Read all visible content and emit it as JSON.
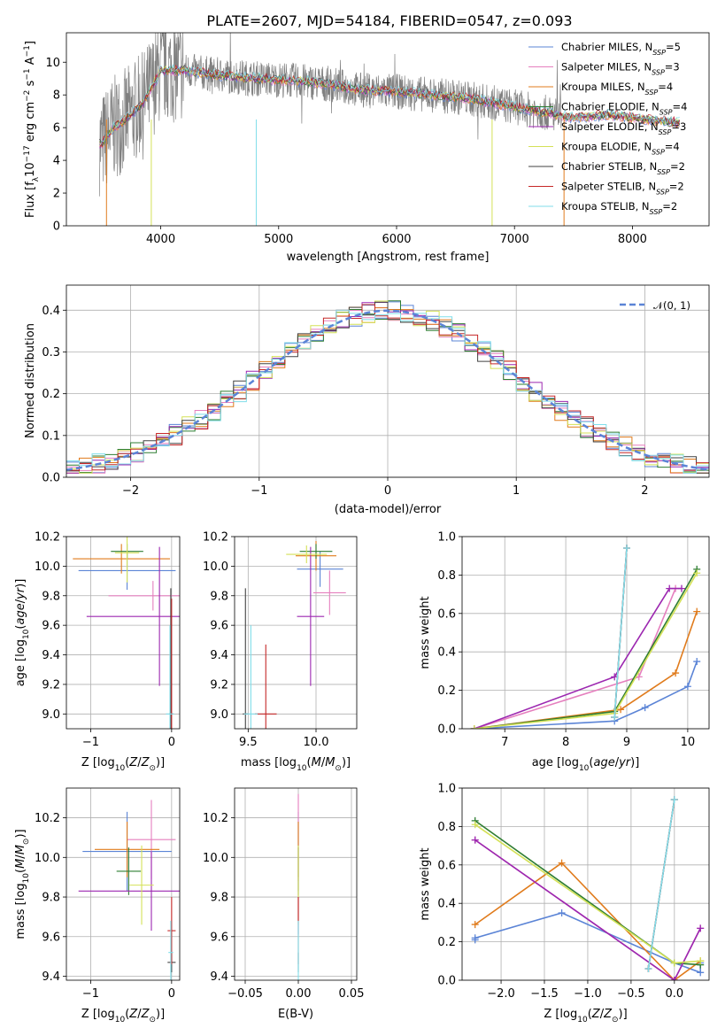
{
  "title": "PLATE=2607, MJD=54184, FIBERID=0547, z=0.093",
  "chart_data": [
    {
      "id": "spectrum",
      "type": "line",
      "xlabel": "wavelength [Angstrom, rest frame]",
      "ylabel": "Flux [f_λ10^-17 erg cm^-2 s^-1 A^-1]",
      "xlim": [
        3200,
        8650
      ],
      "ylim": [
        0,
        11.8
      ],
      "xticks": [
        4000,
        5000,
        6000,
        7000,
        8000
      ],
      "yticks": [
        0,
        2,
        4,
        6,
        8,
        10
      ],
      "grid": false,
      "legend_position": "top-right",
      "legend": [
        {
          "base": "Chabrier MILES, N",
          "sub": "SSP",
          "tail": "=5",
          "color": "#5b84d6"
        },
        {
          "base": "Salpeter MILES, N",
          "sub": "SSP",
          "tail": "=3",
          "color": "#e57fbe"
        },
        {
          "base": "Kroupa MILES, N",
          "sub": "SSP",
          "tail": "=4",
          "color": "#e07b1c"
        },
        {
          "base": "Chabrier ELODIE, N",
          "sub": "SSP",
          "tail": "=4",
          "color": "#2e7d32"
        },
        {
          "base": "Salpeter ELODIE, N",
          "sub": "SSP",
          "tail": "=3",
          "color": "#9c27b0"
        },
        {
          "base": "Kroupa ELODIE, N",
          "sub": "SSP",
          "tail": "=4",
          "color": "#d4e157"
        },
        {
          "base": "Chabrier STELIB, N",
          "sub": "SSP",
          "tail": "=2",
          "color": "#424242"
        },
        {
          "base": "Salpeter STELIB, N",
          "sub": "SSP",
          "tail": "=2",
          "color": "#c62828"
        },
        {
          "base": "Kroupa STELIB, N",
          "sub": "SSP",
          "tail": "=2",
          "color": "#80deea"
        }
      ],
      "data_envelope": {
        "x": [
          3500,
          3600,
          3700,
          3850,
          4000,
          4200,
          4500,
          4800,
          5100,
          5400,
          5700,
          6000,
          6300,
          6600,
          6900,
          7200,
          7500,
          7800,
          8100,
          8400
        ],
        "y": [
          5.0,
          6.0,
          6.5,
          7.5,
          9.5,
          9.5,
          9.2,
          9.0,
          8.9,
          8.7,
          8.3,
          8.2,
          8.0,
          7.8,
          7.4,
          7.0,
          6.6,
          6.8,
          6.5,
          6.3
        ]
      },
      "noise_band": {
        "x_range": [
          3500,
          7400
        ],
        "amplitude": 2.0
      }
    },
    {
      "id": "residuals",
      "type": "line",
      "xlabel": "(data-model)/error",
      "ylabel": "Normed distribution",
      "xlim": [
        -2.5,
        2.5
      ],
      "ylim": [
        0,
        0.46
      ],
      "xticks": [
        -2,
        -1,
        0,
        1,
        2
      ],
      "yticks": [
        0.0,
        0.1,
        0.2,
        0.3,
        0.4
      ],
      "grid": true,
      "legend_position": "top-right",
      "legend": [
        {
          "label": "𝒩(0, 1)",
          "color": "#5b84d6",
          "dashed": true
        }
      ],
      "curve": "normal_pdf_mean0_sd1"
    },
    {
      "id": "age_vs_Z",
      "type": "scatter",
      "xlabel": "Z [log10(Z/Z☉)]",
      "ylabel": "age  [log10(age/yr)]",
      "xlim": [
        -1.3,
        0.1
      ],
      "ylim": [
        8.9,
        10.2
      ],
      "xticks": [
        -1,
        0
      ],
      "yticks": [
        9.0,
        9.2,
        9.4,
        9.6,
        9.8,
        10.0,
        10.2
      ],
      "grid": true,
      "points": [
        {
          "x": -0.55,
          "y": 9.97,
          "xerr": 0.6,
          "yerr": 0.13,
          "color": "#5b84d6"
        },
        {
          "x": -0.23,
          "y": 9.8,
          "xerr": 0.55,
          "yerr": 0.1,
          "color": "#e57fbe"
        },
        {
          "x": -0.62,
          "y": 10.05,
          "xerr": 0.6,
          "yerr": 0.1,
          "color": "#e07b1c"
        },
        {
          "x": -0.55,
          "y": 10.1,
          "xerr": 0.2,
          "yerr": 0.05,
          "color": "#2e7d32"
        },
        {
          "x": -0.15,
          "y": 9.66,
          "xerr": 0.9,
          "yerr": 0.47,
          "color": "#9c27b0"
        },
        {
          "x": -0.55,
          "y": 10.09,
          "xerr": 0.15,
          "yerr": 0.2,
          "color": "#d4e157"
        },
        {
          "x": -0.01,
          "y": 9.0,
          "xerr": 0.02,
          "yerr": 0.85,
          "color": "#424242"
        },
        {
          "x": 0.0,
          "y": 9.0,
          "xerr": 0.02,
          "yerr": 0.78,
          "color": "#c62828"
        },
        {
          "x": -0.02,
          "y": 9.0,
          "xerr": 0.05,
          "yerr": 0.6,
          "color": "#80deea"
        }
      ]
    },
    {
      "id": "age_vs_mass",
      "type": "scatter",
      "xlabel": "mass [log10(M/M☉)]",
      "ylabel": "",
      "xlim": [
        9.4,
        10.3
      ],
      "ylim": [
        8.9,
        10.2
      ],
      "xticks": [
        9.5,
        10.0
      ],
      "yticks": [
        9.0,
        9.2,
        9.4,
        9.6,
        9.8,
        10.0,
        10.2
      ],
      "grid": true,
      "points": [
        {
          "x": 10.03,
          "y": 9.98,
          "xerr": 0.17,
          "yerr": 0.12,
          "color": "#5b84d6"
        },
        {
          "x": 10.1,
          "y": 9.82,
          "xerr": 0.12,
          "yerr": 0.15,
          "color": "#e57fbe"
        },
        {
          "x": 10.0,
          "y": 10.07,
          "xerr": 0.15,
          "yerr": 0.1,
          "color": "#e07b1c"
        },
        {
          "x": 10.0,
          "y": 10.1,
          "xerr": 0.12,
          "yerr": 0.05,
          "color": "#2e7d32"
        },
        {
          "x": 9.96,
          "y": 9.66,
          "xerr": 0.1,
          "yerr": 0.47,
          "color": "#9c27b0"
        },
        {
          "x": 9.93,
          "y": 10.08,
          "xerr": 0.15,
          "yerr": 0.06,
          "color": "#d4e157"
        },
        {
          "x": 9.48,
          "y": 9.0,
          "xerr": 0.02,
          "yerr": 0.85,
          "color": "#424242"
        },
        {
          "x": 9.63,
          "y": 9.0,
          "xerr": 0.08,
          "yerr": 0.47,
          "color": "#c62828"
        },
        {
          "x": 9.52,
          "y": 9.0,
          "xerr": 0.05,
          "yerr": 0.6,
          "color": "#80deea"
        }
      ]
    },
    {
      "id": "weight_vs_age",
      "type": "line",
      "xlabel": "age  [log10(age/yr)]",
      "ylabel": "mass weight",
      "xlim": [
        6.3,
        10.35
      ],
      "ylim": [
        0,
        1.0
      ],
      "xticks": [
        7,
        8,
        9,
        10
      ],
      "yticks": [
        0.0,
        0.2,
        0.4,
        0.6,
        0.8,
        1.0
      ],
      "grid": true,
      "series": [
        {
          "color": "#5b84d6",
          "x": [
            6.5,
            8.8,
            9.3,
            10.0,
            10.15
          ],
          "y": [
            0.0,
            0.04,
            0.11,
            0.22,
            0.35
          ]
        },
        {
          "color": "#e57fbe",
          "x": [
            6.5,
            9.2,
            9.8
          ],
          "y": [
            0.0,
            0.27,
            0.73
          ]
        },
        {
          "color": "#e07b1c",
          "x": [
            6.5,
            8.9,
            9.8,
            10.15
          ],
          "y": [
            0.0,
            0.1,
            0.29,
            0.61
          ]
        },
        {
          "color": "#2e7d32",
          "x": [
            6.5,
            8.8,
            10.15
          ],
          "y": [
            0.0,
            0.09,
            0.83
          ]
        },
        {
          "color": "#9c27b0",
          "x": [
            6.5,
            8.8,
            9.7,
            9.9
          ],
          "y": [
            0.0,
            0.27,
            0.73,
            0.73
          ]
        },
        {
          "color": "#d4e157",
          "x": [
            6.5,
            8.8,
            10.15
          ],
          "y": [
            0.0,
            0.08,
            0.81
          ]
        },
        {
          "color": "#424242",
          "x": [
            8.8,
            9.0
          ],
          "y": [
            0.06,
            0.94
          ]
        },
        {
          "color": "#c62828",
          "x": [
            8.8,
            9.0
          ],
          "y": [
            0.06,
            0.94
          ]
        },
        {
          "color": "#80deea",
          "x": [
            8.8,
            9.0
          ],
          "y": [
            0.06,
            0.94
          ]
        }
      ]
    },
    {
      "id": "mass_vs_Z",
      "type": "scatter",
      "xlabel": "Z [log10(Z/Z☉)]",
      "ylabel": "mass [log10(M/M☉)]",
      "xlim": [
        -1.3,
        0.1
      ],
      "ylim": [
        9.38,
        10.35
      ],
      "xticks": [
        -1,
        0
      ],
      "yticks": [
        9.4,
        9.6,
        9.8,
        10.0,
        10.2
      ],
      "grid": true,
      "points": [
        {
          "x": -0.55,
          "y": 10.03,
          "xerr": 0.55,
          "yerr": 0.2,
          "color": "#5b84d6"
        },
        {
          "x": -0.25,
          "y": 10.09,
          "xerr": 0.3,
          "yerr": 0.2,
          "color": "#e57fbe"
        },
        {
          "x": -0.55,
          "y": 10.04,
          "xerr": 0.4,
          "yerr": 0.14,
          "color": "#e07b1c"
        },
        {
          "x": -0.53,
          "y": 9.93,
          "xerr": 0.15,
          "yerr": 0.12,
          "color": "#2e7d32"
        },
        {
          "x": -0.25,
          "y": 9.83,
          "xerr": 0.9,
          "yerr": 0.2,
          "color": "#9c27b0"
        },
        {
          "x": -0.37,
          "y": 9.86,
          "xerr": 0.15,
          "yerr": 0.2,
          "color": "#d4e157"
        },
        {
          "x": 0.0,
          "y": 9.47,
          "xerr": 0.05,
          "yerr": 0.05,
          "color": "#424242"
        },
        {
          "x": 0.0,
          "y": 9.63,
          "xerr": 0.05,
          "yerr": 0.17,
          "color": "#c62828"
        },
        {
          "x": -0.01,
          "y": 9.52,
          "xerr": 0.03,
          "yerr": 0.16,
          "color": "#80deea"
        }
      ]
    },
    {
      "id": "mass_vs_ebv",
      "type": "scatter",
      "xlabel": "E(B-V)",
      "ylabel": "",
      "xlim": [
        -0.06,
        0.055
      ],
      "ylim": [
        9.38,
        10.35
      ],
      "xticks": [
        -0.05,
        0.0,
        0.05
      ],
      "yticks": [
        9.4,
        9.6,
        9.8,
        10.0,
        10.2
      ],
      "grid": true,
      "points": [
        {
          "x": 0.0,
          "y": 10.03,
          "xerr": 0.0,
          "yerr": 0.2,
          "color": "#5b84d6"
        },
        {
          "x": 0.0,
          "y": 10.1,
          "xerr": 0.0,
          "yerr": 0.22,
          "color": "#e57fbe"
        },
        {
          "x": 0.0,
          "y": 10.04,
          "xerr": 0.0,
          "yerr": 0.14,
          "color": "#e07b1c"
        },
        {
          "x": 0.0,
          "y": 9.93,
          "xerr": 0.0,
          "yerr": 0.12,
          "color": "#2e7d32"
        },
        {
          "x": 0.0,
          "y": 9.83,
          "xerr": 0.0,
          "yerr": 0.22,
          "color": "#9c27b0"
        },
        {
          "x": 0.0,
          "y": 9.86,
          "xerr": 0.0,
          "yerr": 0.2,
          "color": "#d4e157"
        },
        {
          "x": 0.0,
          "y": 9.47,
          "xerr": 0.0,
          "yerr": 0.05,
          "color": "#424242"
        },
        {
          "x": 0.0,
          "y": 9.63,
          "xerr": 0.0,
          "yerr": 0.17,
          "color": "#c62828"
        },
        {
          "x": 0.0,
          "y": 9.52,
          "xerr": 0.0,
          "yerr": 0.16,
          "color": "#80deea"
        }
      ]
    },
    {
      "id": "weight_vs_Z",
      "type": "line",
      "xlabel": "Z [log10(Z/Z☉)]",
      "ylabel": "mass weight",
      "xlim": [
        -2.45,
        0.4
      ],
      "ylim": [
        0,
        1.0
      ],
      "xticks": [
        -2.0,
        -1.5,
        -1.0,
        -0.5,
        0.0
      ],
      "yticks": [
        0.0,
        0.2,
        0.4,
        0.6,
        0.8,
        1.0
      ],
      "grid": true,
      "series": [
        {
          "color": "#5b84d6",
          "x": [
            -2.3,
            -2.3,
            -1.3,
            0.0,
            0.3,
            0.3
          ],
          "y": [
            0.21,
            0.22,
            0.35,
            0.09,
            0.04,
            0.09
          ]
        },
        {
          "color": "#e57fbe",
          "x": [
            -2.3,
            0.0,
            0.3
          ],
          "y": [
            0.73,
            0.0,
            0.27
          ]
        },
        {
          "color": "#e07b1c",
          "x": [
            -2.3,
            -1.3,
            0.0,
            0.3
          ],
          "y": [
            0.29,
            0.61,
            0.0,
            0.1
          ]
        },
        {
          "color": "#2e7d32",
          "x": [
            -2.3,
            0.0,
            0.3
          ],
          "y": [
            0.83,
            0.09,
            0.08
          ]
        },
        {
          "color": "#9c27b0",
          "x": [
            -2.3,
            0.0,
            0.3
          ],
          "y": [
            0.73,
            0.0,
            0.27
          ]
        },
        {
          "color": "#d4e157",
          "x": [
            -2.3,
            0.0,
            0.3
          ],
          "y": [
            0.81,
            0.09,
            0.1
          ]
        },
        {
          "color": "#424242",
          "x": [
            -0.3,
            0.0
          ],
          "y": [
            0.06,
            0.94
          ]
        },
        {
          "color": "#c62828",
          "x": [
            -0.3,
            0.0
          ],
          "y": [
            0.06,
            0.94
          ]
        },
        {
          "color": "#80deea",
          "x": [
            -0.3,
            0.0
          ],
          "y": [
            0.06,
            0.94
          ]
        }
      ]
    }
  ]
}
